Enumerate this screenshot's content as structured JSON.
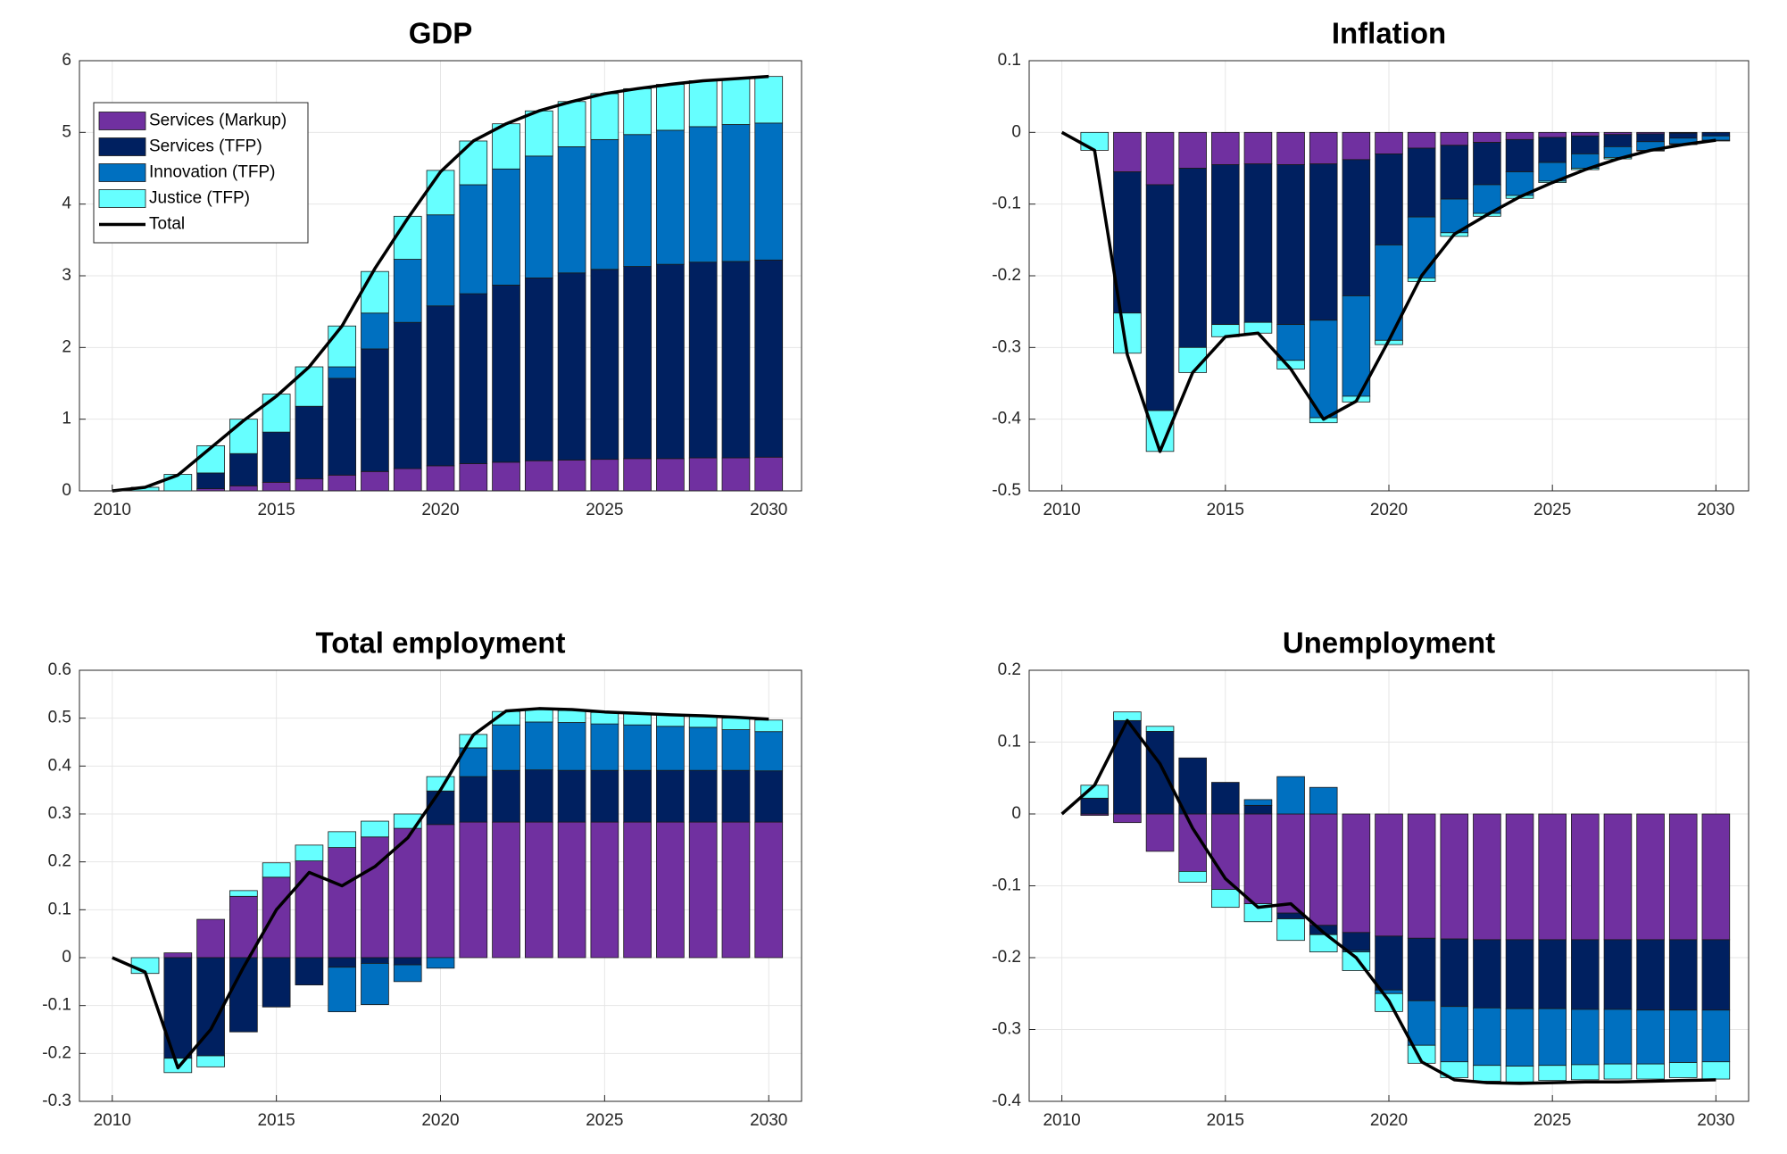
{
  "chart_data": [
    {
      "type": "bar",
      "title": "GDP",
      "stacked": true,
      "grid": true,
      "legend": "upper left",
      "x": [
        2010,
        2011,
        2012,
        2013,
        2014,
        2015,
        2016,
        2017,
        2018,
        2019,
        2020,
        2021,
        2022,
        2023,
        2024,
        2025,
        2026,
        2027,
        2028,
        2029,
        2030
      ],
      "xlim": [
        2009,
        2031
      ],
      "xticks": [
        2010,
        2015,
        2020,
        2025,
        2030
      ],
      "ylim": [
        0,
        6
      ],
      "yticks": [
        0,
        1,
        2,
        3,
        4,
        5,
        6
      ],
      "series": [
        {
          "name": "Services (Markup)",
          "color": "#7030a0",
          "values": [
            0,
            0,
            0,
            0.03,
            0.07,
            0.12,
            0.17,
            0.22,
            0.27,
            0.31,
            0.35,
            0.38,
            0.4,
            0.42,
            0.43,
            0.44,
            0.45,
            0.45,
            0.46,
            0.46,
            0.47
          ]
        },
        {
          "name": "Services (TFP)",
          "color": "#002060",
          "values": [
            0,
            0,
            0,
            0.22,
            0.45,
            0.7,
            1.01,
            1.35,
            1.71,
            2.04,
            2.23,
            2.37,
            2.47,
            2.55,
            2.61,
            2.65,
            2.68,
            2.71,
            2.73,
            2.74,
            2.75
          ]
        },
        {
          "name": "Innovation (TFP)",
          "color": "#0070c0",
          "values": [
            0,
            0,
            0,
            0,
            0,
            0,
            0,
            0.16,
            0.5,
            0.88,
            1.27,
            1.52,
            1.62,
            1.7,
            1.76,
            1.81,
            1.84,
            1.87,
            1.89,
            1.91,
            1.91
          ]
        },
        {
          "name": "Justice (TFP)",
          "color": "#66ffff",
          "values": [
            0,
            0.05,
            0.23,
            0.38,
            0.48,
            0.53,
            0.55,
            0.57,
            0.58,
            0.6,
            0.62,
            0.61,
            0.63,
            0.63,
            0.63,
            0.64,
            0.64,
            0.64,
            0.64,
            0.64,
            0.65
          ]
        }
      ],
      "total": {
        "name": "Total",
        "color": "#000000",
        "values": [
          0,
          0.05,
          0.22,
          0.6,
          0.98,
          1.32,
          1.73,
          2.3,
          3.1,
          3.8,
          4.45,
          4.88,
          5.12,
          5.3,
          5.43,
          5.54,
          5.61,
          5.67,
          5.72,
          5.75,
          5.78
        ]
      }
    },
    {
      "type": "bar",
      "title": "Inflation",
      "stacked": true,
      "grid": true,
      "x": [
        2010,
        2011,
        2012,
        2013,
        2014,
        2015,
        2016,
        2017,
        2018,
        2019,
        2020,
        2021,
        2022,
        2023,
        2024,
        2025,
        2026,
        2027,
        2028,
        2029,
        2030
      ],
      "xlim": [
        2009,
        2031
      ],
      "xticks": [
        2010,
        2015,
        2020,
        2025,
        2030
      ],
      "ylim": [
        -0.5,
        0.1
      ],
      "yticks": [
        -0.5,
        -0.4,
        -0.3,
        -0.2,
        -0.1,
        0,
        0.1
      ],
      "series": [
        {
          "color": "#7030a0",
          "values": [
            0,
            0,
            -0.055,
            -0.073,
            -0.05,
            -0.045,
            -0.044,
            -0.045,
            -0.044,
            -0.038,
            -0.03,
            -0.022,
            -0.018,
            -0.014,
            -0.01,
            -0.007,
            -0.005,
            -0.003,
            -0.002,
            -0.001,
            0
          ]
        },
        {
          "color": "#002060",
          "values": [
            0,
            0,
            -0.197,
            -0.315,
            -0.25,
            -0.223,
            -0.221,
            -0.223,
            -0.218,
            -0.19,
            -0.127,
            -0.096,
            -0.075,
            -0.059,
            -0.045,
            -0.035,
            -0.025,
            -0.017,
            -0.011,
            -0.007,
            -0.005
          ]
        },
        {
          "color": "#0070c0",
          "values": [
            0,
            0,
            0,
            0,
            0,
            0,
            0,
            -0.05,
            -0.136,
            -0.14,
            -0.133,
            -0.085,
            -0.047,
            -0.04,
            -0.033,
            -0.026,
            -0.02,
            -0.015,
            -0.012,
            -0.008,
            -0.006
          ]
        },
        {
          "color": "#66ffff",
          "values": [
            0,
            -0.025,
            -0.056,
            -0.057,
            -0.035,
            -0.017,
            -0.015,
            -0.012,
            -0.007,
            -0.008,
            -0.006,
            -0.005,
            -0.005,
            -0.004,
            -0.004,
            -0.002,
            -0.002,
            -0.002,
            -0.001,
            -0.001,
            -0.001
          ]
        }
      ],
      "total": {
        "color": "#000000",
        "values": [
          0,
          -0.025,
          -0.31,
          -0.445,
          -0.335,
          -0.285,
          -0.28,
          -0.33,
          -0.4,
          -0.375,
          -0.29,
          -0.2,
          -0.142,
          -0.115,
          -0.09,
          -0.07,
          -0.052,
          -0.037,
          -0.025,
          -0.017,
          -0.011
        ]
      }
    },
    {
      "type": "bar",
      "title": "Total employment",
      "stacked": true,
      "grid": true,
      "x": [
        2010,
        2011,
        2012,
        2013,
        2014,
        2015,
        2016,
        2017,
        2018,
        2019,
        2020,
        2021,
        2022,
        2023,
        2024,
        2025,
        2026,
        2027,
        2028,
        2029,
        2030
      ],
      "xlim": [
        2009,
        2031
      ],
      "xticks": [
        2010,
        2015,
        2020,
        2025,
        2030
      ],
      "ylim": [
        -0.3,
        0.6
      ],
      "yticks": [
        -0.3,
        -0.2,
        -0.1,
        0,
        0.1,
        0.2,
        0.3,
        0.4,
        0.5,
        0.6
      ],
      "series": [
        {
          "color": "#7030a0",
          "values": [
            0,
            0,
            0.01,
            0.08,
            0.128,
            0.168,
            0.202,
            0.23,
            0.252,
            0.27,
            0.278,
            0.283,
            0.283,
            0.283,
            0.283,
            0.283,
            0.283,
            0.283,
            0.283,
            0.283,
            0.283
          ]
        },
        {
          "color": "#002060",
          "values": [
            0,
            0,
            -0.21,
            -0.205,
            -0.155,
            -0.103,
            -0.057,
            -0.02,
            -0.012,
            -0.015,
            0.07,
            0.095,
            0.108,
            0.109,
            0.108,
            0.108,
            0.108,
            0.108,
            0.108,
            0.108,
            0.107
          ]
        },
        {
          "color": "#0070c0",
          "values": [
            0,
            0,
            0,
            0,
            0,
            0,
            0,
            -0.093,
            -0.086,
            -0.035,
            -0.022,
            0.06,
            0.095,
            0.1,
            0.1,
            0.097,
            0.095,
            0.092,
            0.09,
            0.085,
            0.082
          ]
        },
        {
          "color": "#66ffff",
          "values": [
            0,
            -0.033,
            -0.03,
            -0.023,
            0.012,
            0.03,
            0.033,
            0.033,
            0.033,
            0.03,
            0.03,
            0.028,
            0.028,
            0.028,
            0.025,
            0.024,
            0.024,
            0.024,
            0.024,
            0.024,
            0.024
          ]
        }
      ],
      "total": {
        "color": "#000000",
        "values": [
          0,
          -0.03,
          -0.23,
          -0.15,
          -0.02,
          0.1,
          0.178,
          0.15,
          0.19,
          0.25,
          0.35,
          0.465,
          0.515,
          0.52,
          0.518,
          0.513,
          0.51,
          0.507,
          0.505,
          0.502,
          0.498
        ]
      }
    },
    {
      "type": "bar",
      "title": "Unemployment",
      "stacked": true,
      "grid": true,
      "x": [
        2010,
        2011,
        2012,
        2013,
        2014,
        2015,
        2016,
        2017,
        2018,
        2019,
        2020,
        2021,
        2022,
        2023,
        2024,
        2025,
        2026,
        2027,
        2028,
        2029,
        2030
      ],
      "xlim": [
        2009,
        2031
      ],
      "xticks": [
        2010,
        2015,
        2020,
        2025,
        2030
      ],
      "ylim": [
        -0.4,
        0.2
      ],
      "yticks": [
        -0.4,
        -0.3,
        -0.2,
        -0.1,
        0,
        0.1,
        0.2
      ],
      "series": [
        {
          "color": "#7030a0",
          "values": [
            0,
            -0.002,
            -0.012,
            -0.052,
            -0.08,
            -0.105,
            -0.125,
            -0.138,
            -0.155,
            -0.165,
            -0.17,
            -0.173,
            -0.174,
            -0.175,
            -0.175,
            -0.175,
            -0.175,
            -0.175,
            -0.175,
            -0.175,
            -0.175
          ]
        },
        {
          "color": "#002060",
          "values": [
            0,
            0.022,
            0.13,
            0.115,
            0.078,
            0.044,
            0.012,
            -0.008,
            -0.013,
            -0.025,
            -0.075,
            -0.087,
            -0.094,
            -0.095,
            -0.096,
            -0.096,
            -0.097,
            -0.097,
            -0.098,
            -0.098,
            -0.098
          ]
        },
        {
          "color": "#0070c0",
          "values": [
            0,
            0,
            0,
            0,
            0,
            0,
            0.008,
            0.052,
            0.037,
            -0.002,
            -0.005,
            -0.062,
            -0.077,
            -0.08,
            -0.08,
            -0.079,
            -0.077,
            -0.076,
            -0.075,
            -0.073,
            -0.072
          ]
        },
        {
          "color": "#66ffff",
          "values": [
            0,
            0.018,
            0.012,
            0.007,
            -0.015,
            -0.025,
            -0.025,
            -0.03,
            -0.024,
            -0.026,
            -0.025,
            -0.025,
            -0.022,
            -0.022,
            -0.022,
            -0.021,
            -0.021,
            -0.021,
            -0.021,
            -0.021,
            -0.024
          ]
        }
      ],
      "total": {
        "color": "#000000",
        "values": [
          0,
          0.04,
          0.13,
          0.07,
          -0.02,
          -0.09,
          -0.13,
          -0.125,
          -0.165,
          -0.2,
          -0.26,
          -0.345,
          -0.37,
          -0.374,
          -0.375,
          -0.374,
          -0.373,
          -0.373,
          -0.372,
          -0.371,
          -0.37
        ]
      }
    }
  ]
}
